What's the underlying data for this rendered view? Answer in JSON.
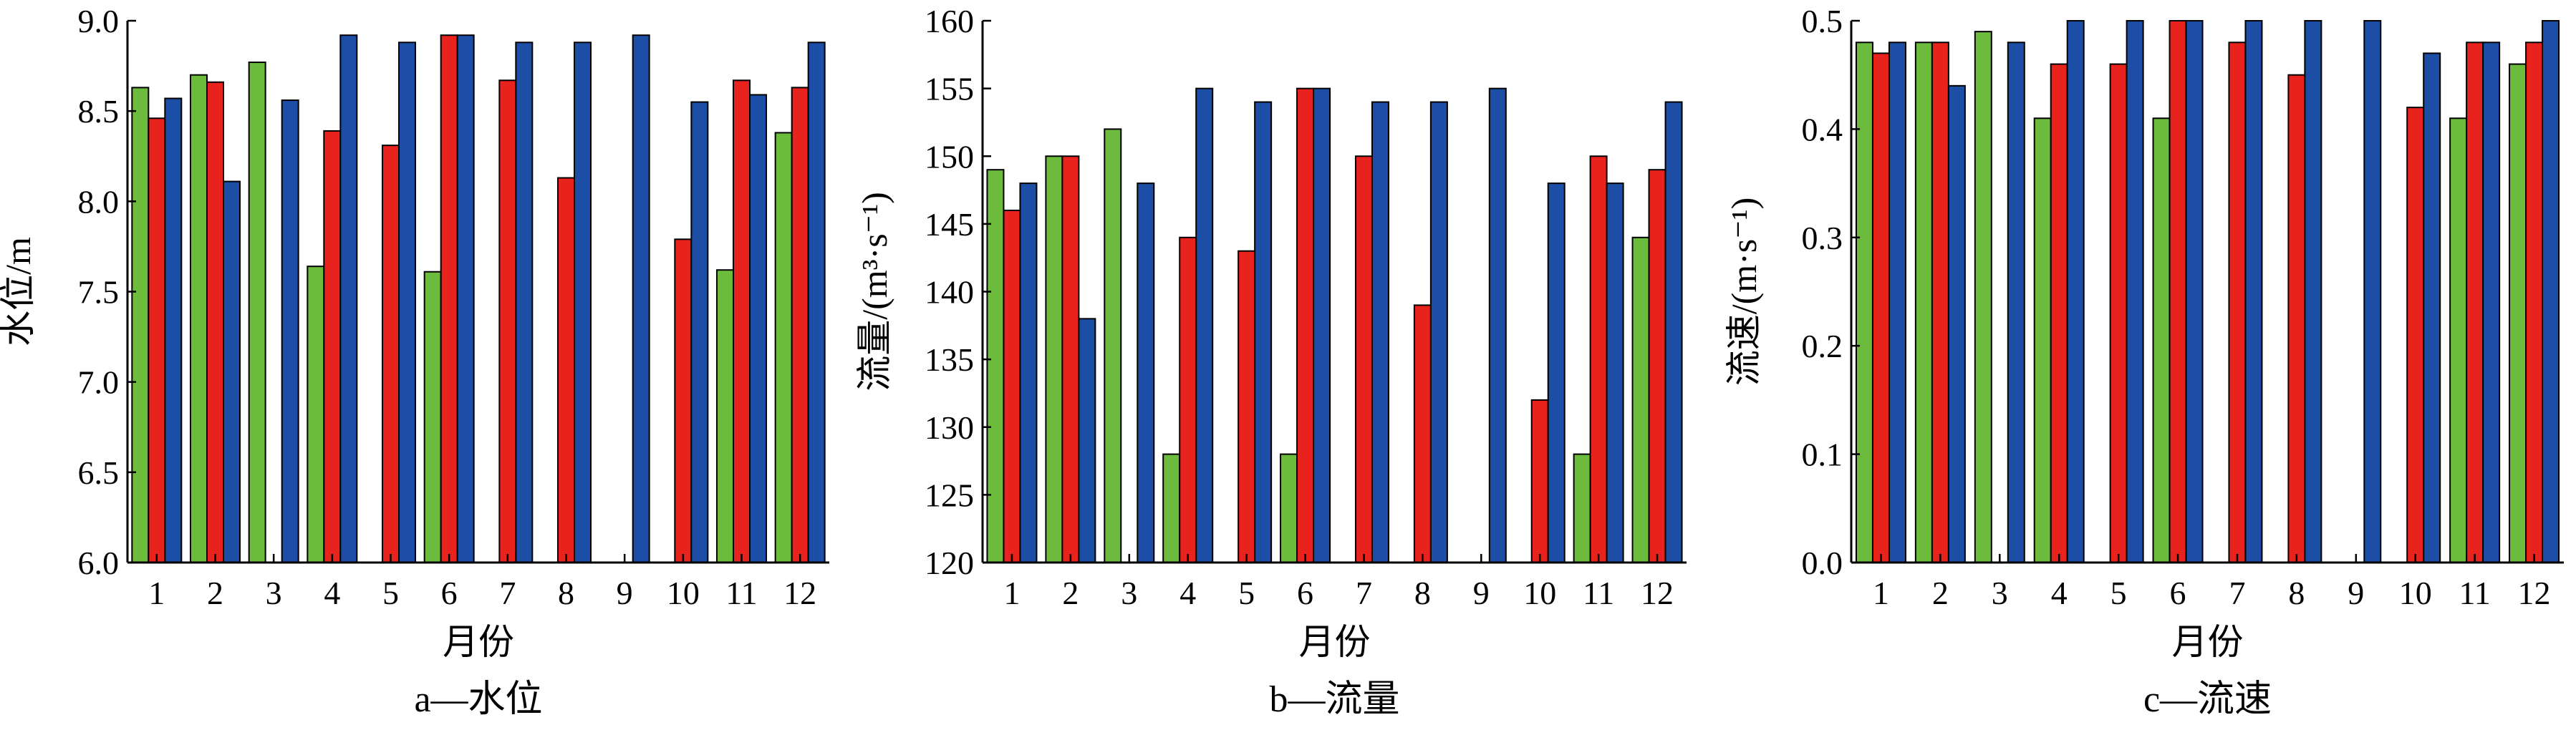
{
  "colors": {
    "green": "#6cbb3c",
    "red": "#e8221c",
    "blue": "#1c4ea6",
    "axis": "#000000"
  },
  "chart_data": [
    {
      "type": "bar",
      "caption": "a—水位",
      "xlabel": "月份",
      "ylabel": "水位/m",
      "ylim": [
        6.0,
        9.0
      ],
      "yticks": [
        "6.0",
        "6.5",
        "7.0",
        "7.5",
        "8.0",
        "8.5",
        "9.0"
      ],
      "categories": [
        "1",
        "2",
        "3",
        "4",
        "5",
        "6",
        "7",
        "8",
        "9",
        "10",
        "11",
        "12"
      ],
      "series": [
        {
          "color": "green",
          "values": [
            8.63,
            8.7,
            8.77,
            7.64,
            null,
            7.61,
            null,
            null,
            null,
            null,
            7.62,
            8.38
          ]
        },
        {
          "color": "red",
          "values": [
            8.46,
            8.66,
            null,
            8.39,
            8.31,
            8.92,
            8.67,
            8.13,
            null,
            7.79,
            8.67,
            8.63
          ]
        },
        {
          "color": "blue",
          "values": [
            8.57,
            8.11,
            8.56,
            8.92,
            8.88,
            8.92,
            8.88,
            8.88,
            8.92,
            8.55,
            8.59,
            8.88
          ]
        }
      ]
    },
    {
      "type": "bar",
      "caption": "b—流量",
      "xlabel": "月份",
      "ylabel": "流量/(m³·s⁻¹)",
      "ylim": [
        120,
        160
      ],
      "yticks": [
        "120",
        "125",
        "130",
        "135",
        "140",
        "145",
        "150",
        "155",
        "160"
      ],
      "categories": [
        "1",
        "2",
        "3",
        "4",
        "5",
        "6",
        "7",
        "8",
        "9",
        "10",
        "11",
        "12"
      ],
      "series": [
        {
          "color": "green",
          "values": [
            149,
            150,
            152,
            128,
            null,
            128,
            null,
            null,
            null,
            null,
            128,
            144
          ]
        },
        {
          "color": "red",
          "values": [
            146,
            150,
            null,
            144,
            143,
            155,
            150,
            139,
            null,
            132,
            150,
            149
          ]
        },
        {
          "color": "blue",
          "values": [
            148,
            138,
            148,
            155,
            154,
            155,
            154,
            154,
            155,
            148,
            148,
            154
          ]
        }
      ]
    },
    {
      "type": "bar",
      "caption": "c—流速",
      "xlabel": "月份",
      "ylabel": "流速/(m·s⁻¹)",
      "ylim": [
        0.0,
        0.5
      ],
      "yticks": [
        "0.0",
        "0.1",
        "0.2",
        "0.3",
        "0.4",
        "0.5"
      ],
      "categories": [
        "1",
        "2",
        "3",
        "4",
        "5",
        "6",
        "7",
        "8",
        "9",
        "10",
        "11",
        "12"
      ],
      "series": [
        {
          "color": "green",
          "values": [
            0.48,
            0.48,
            0.49,
            0.41,
            null,
            0.41,
            null,
            null,
            null,
            null,
            0.41,
            0.46
          ]
        },
        {
          "color": "red",
          "values": [
            0.47,
            0.48,
            null,
            0.46,
            0.46,
            0.5,
            0.48,
            0.45,
            null,
            0.42,
            0.48,
            0.48
          ]
        },
        {
          "color": "blue",
          "values": [
            0.48,
            0.44,
            0.48,
            0.5,
            0.5,
            0.5,
            0.5,
            0.5,
            0.5,
            0.47,
            0.48,
            0.5
          ]
        }
      ]
    }
  ]
}
